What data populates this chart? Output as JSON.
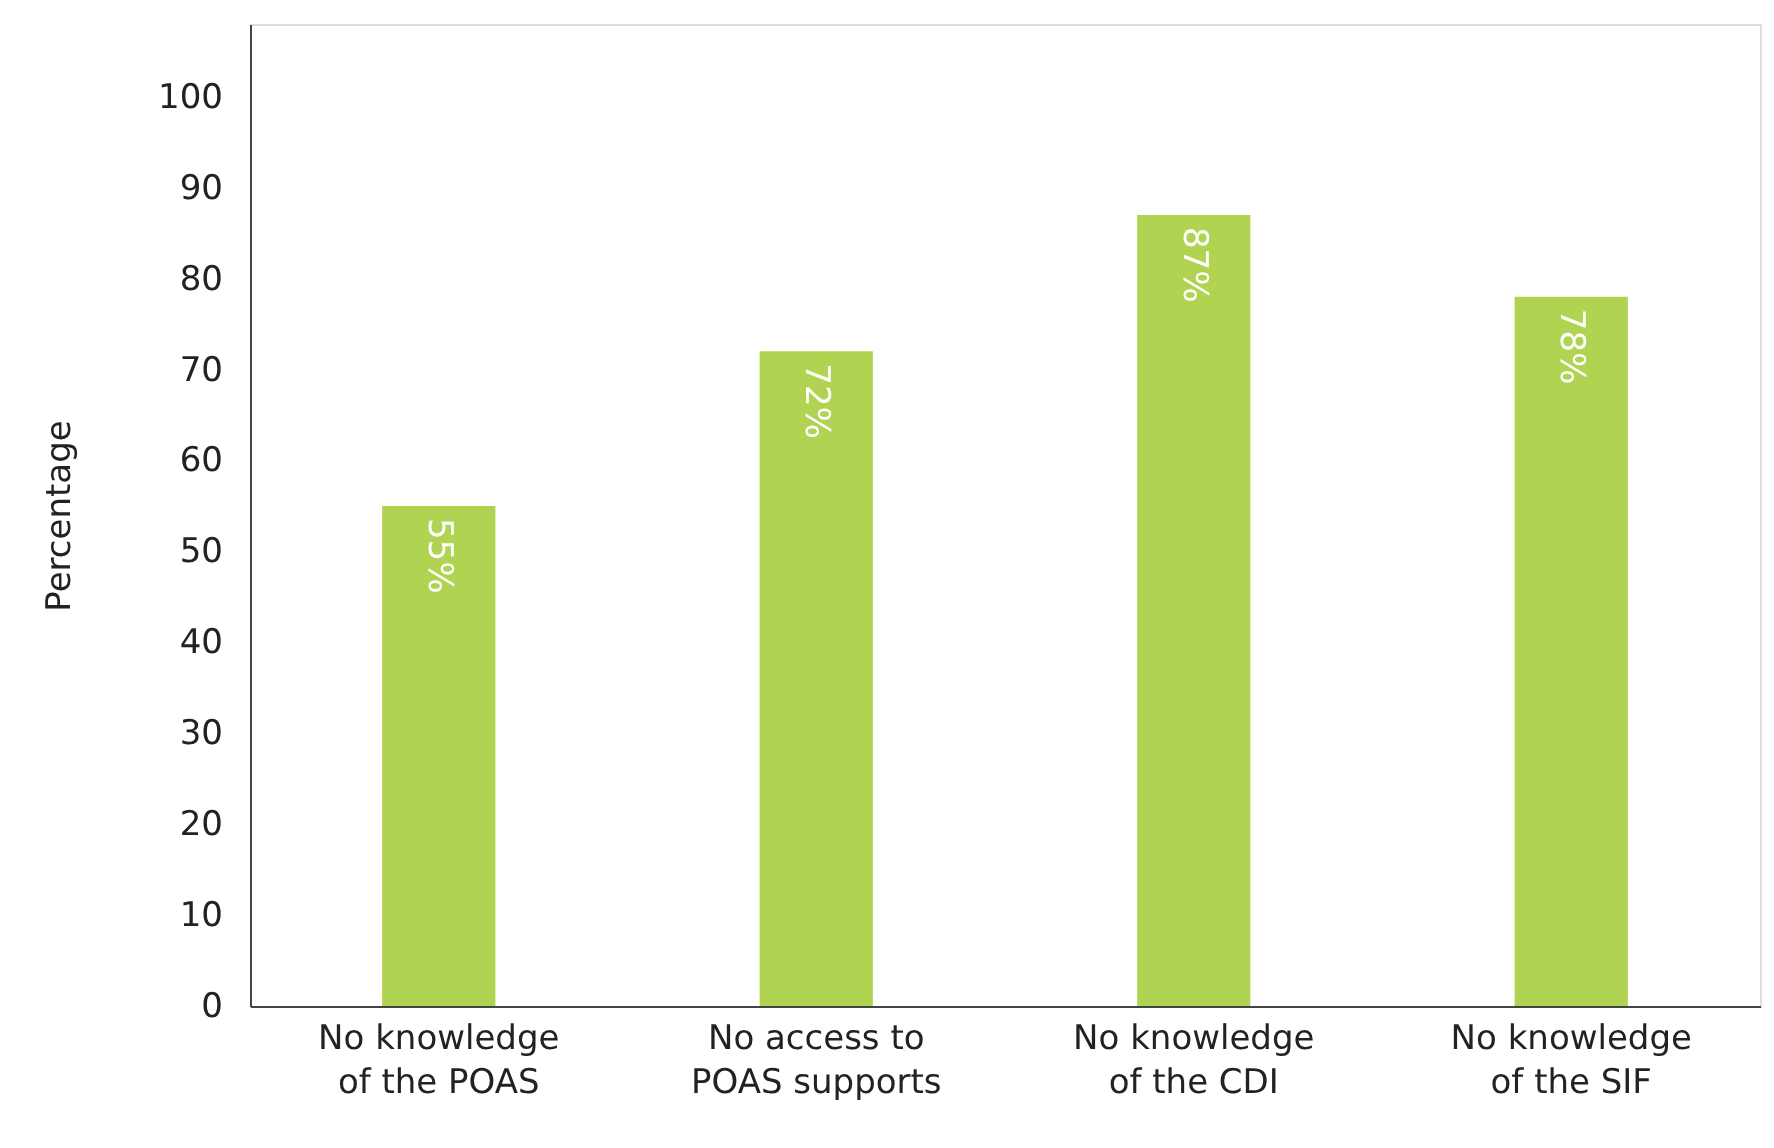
{
  "chart_data": {
    "type": "bar",
    "ylabel": "Percentage",
    "categories": [
      "No knowledge of the POAS",
      "No access to POAS supports",
      "No knowledge of the CDI",
      "No knowledge of the SIF"
    ],
    "values": [
      55,
      72,
      87,
      78
    ],
    "value_labels": [
      "55%",
      "72%",
      "87%",
      "78%"
    ],
    "color": "#b0d452",
    "ylim": [
      0,
      108
    ],
    "yticks": [
      0,
      10,
      20,
      30,
      40,
      50,
      60,
      70,
      80,
      90,
      100
    ],
    "grid": false
  }
}
